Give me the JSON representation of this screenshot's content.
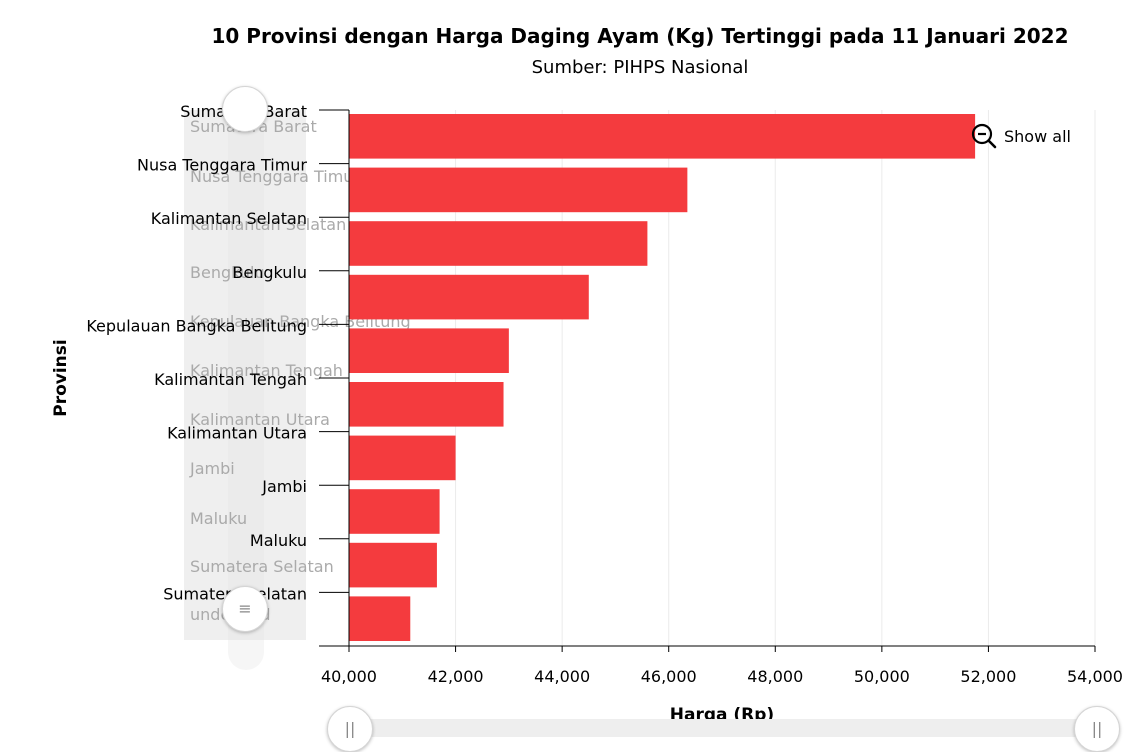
{
  "chart_data": {
    "type": "bar",
    "orientation": "horizontal",
    "title": "10 Provinsi dengan Harga Daging Ayam (Kg) Tertinggi pada 11 Januari 2022",
    "subtitle": "Sumber: PIHPS Nasional",
    "xlabel": "Harga (Rp)",
    "ylabel": "Provinsi",
    "xlim": [
      40000,
      54000
    ],
    "x_ticks": [
      "40,000",
      "42,000",
      "44,000",
      "46,000",
      "48,000",
      "50,000",
      "52,000",
      "54,000"
    ],
    "categories": [
      "Sumatera Barat",
      "Nusa Tenggara Timur",
      "Kalimantan Selatan",
      "Bengkulu",
      "Kepulauan Bangka Belitung",
      "Kalimantan Tengah",
      "Kalimantan Utara",
      "Jambi",
      "Maluku",
      "Sumatera Selatan"
    ],
    "values": [
      51750,
      46350,
      45600,
      44500,
      43000,
      42900,
      42000,
      41700,
      41650,
      41150
    ],
    "bar_color": "#f43b3e",
    "grid": true
  },
  "scrollbar_labels": [
    "Sumatera Barat",
    "Nusa Tenggara Timur",
    "Kalimantan Selatan",
    "Bengkulu",
    "Kepulauan Bangka Belitung",
    "Kalimantan Tengah",
    "Kalimantan Utara",
    "Jambi",
    "Maluku",
    "Sumatera Selatan",
    "undefined"
  ],
  "controls": {
    "zoom_out_label": "Show all",
    "zoom_icon": "zoom-out-icon",
    "grip_icon_vertical": "≡",
    "grip_icon_horizontal": "||"
  }
}
